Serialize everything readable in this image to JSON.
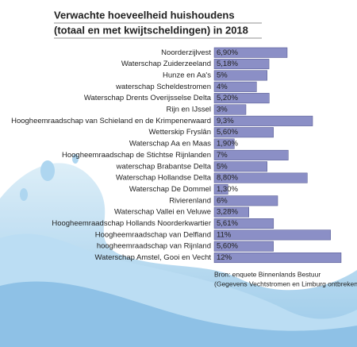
{
  "chart_data": {
    "type": "bar",
    "orientation": "horizontal",
    "title": "Verwachte hoeveelheid huishoudens",
    "subtitle": "(totaal en met kwijtscheldingen) in 2018",
    "categories": [
      "Noorderzijlvest",
      "Waterschap Zuiderzeeland",
      "Hunze en Aa's",
      "waterschap Scheldestromen",
      "Waterschap Drents Overijsselse Delta",
      "Rijn en IJssel",
      "Hoogheemraadschap van Schieland en de Krimpenerwaard",
      "Wetterskip Fryslân",
      "Waterschap Aa en Maas",
      "Hoogheemraadschap de Stichtse Rijnlanden",
      "waterschap Brabantse Delta",
      "Waterschap Hollandse Delta",
      "Waterschap De Dommel",
      "Rivierenland",
      "Waterschap Vallei en Veluwe",
      "Hoogheemraadschap Hollands Noorderkwartier",
      "Hoogheemraadschap van Delfland",
      "hoogheemraadschap van Rijnland",
      "Waterschap Amstel, Gooi en Vecht"
    ],
    "values": [
      6.9,
      5.18,
      5,
      4,
      5.2,
      3,
      9.3,
      5.6,
      1.9,
      7,
      5,
      8.8,
      1.3,
      6,
      3.28,
      5.61,
      11,
      5.6,
      12
    ],
    "value_labels": [
      "6,90%",
      "5,18%",
      "5%",
      "4%",
      "5,20%",
      "3%",
      "9,3%",
      "5,60%",
      "1,90%",
      "7%",
      "5%",
      "8,80%",
      "1,30%",
      "6%",
      "3,28%",
      "5,61%",
      "11%",
      "5,60%",
      "12%"
    ],
    "color": "#8b8fc6",
    "source": [
      "Bron: enquete Binnenlands Bestuur",
      "(Gegevens Vechtstromen en Limburg ontbreken)"
    ]
  }
}
